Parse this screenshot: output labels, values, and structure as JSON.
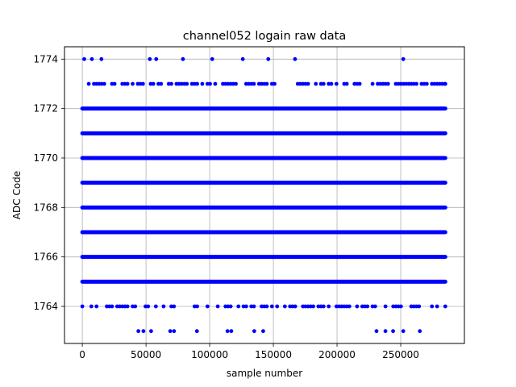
{
  "chart_data": {
    "type": "scatter",
    "title": "channel052 logain raw data",
    "xlabel": "sample number",
    "ylabel": "ADC Code",
    "xlim": [
      -14000,
      300000
    ],
    "ylim": [
      1762.5,
      1774.5
    ],
    "xticks": [
      0,
      50000,
      100000,
      150000,
      200000,
      250000
    ],
    "yticks": [
      1764,
      1766,
      1768,
      1770,
      1772,
      1774
    ],
    "grid": true,
    "marker_color": "#0000ff",
    "dense_rows": {
      "x_range": [
        0,
        285000
      ],
      "y_values": [
        1765,
        1766,
        1767,
        1768,
        1769,
        1770,
        1771,
        1772
      ]
    },
    "sparse_rows": [
      {
        "y": 1774,
        "x": [
          1500,
          7500,
          15000,
          53000,
          58000,
          79000,
          102000,
          126000,
          146000,
          167000,
          252000
        ]
      },
      {
        "y": 1763,
        "x": [
          44000,
          48000,
          54000,
          69000,
          72000,
          90000,
          114000,
          117000,
          135000,
          142000,
          231000,
          238000,
          244000,
          252000,
          265000
        ]
      },
      {
        "y": 1773,
        "x_range": [
          0,
          285000
        ],
        "density": 0.55
      },
      {
        "y": 1764,
        "x_range": [
          0,
          285000
        ],
        "density": 0.5,
        "also_x": [
          0
        ]
      }
    ]
  }
}
